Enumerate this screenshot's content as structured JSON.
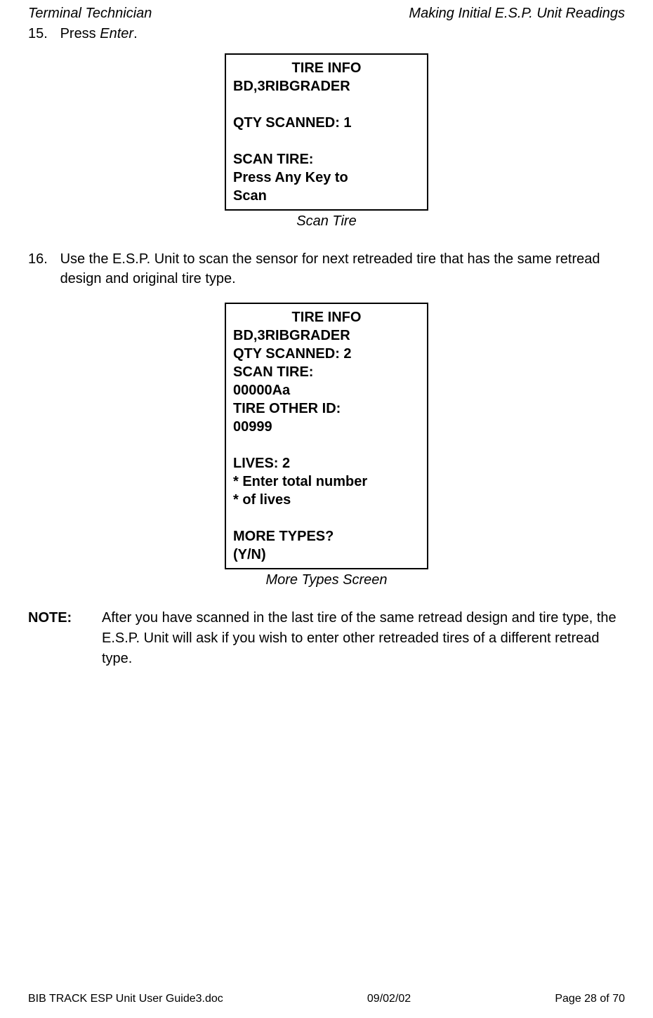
{
  "header": {
    "left": "Terminal Technician",
    "right": "Making Initial E.S.P. Unit Readings"
  },
  "step15": {
    "number": "15.",
    "text_prefix": "Press ",
    "text_italic": "Enter",
    "text_suffix": "."
  },
  "screen1": {
    "title": "TIRE INFO",
    "line1": "BD,3RIBGRADER",
    "line2": "QTY SCANNED: 1",
    "line3": "SCAN TIRE:",
    "line4": "Press Any Key to",
    "line5": "Scan",
    "caption": "Scan Tire"
  },
  "step16": {
    "number": "16.",
    "text": "Use the E.S.P. Unit to scan the sensor for next retreaded tire that has the same retread design and original tire type."
  },
  "screen2": {
    "title": "TIRE INFO",
    "line1": "BD,3RIBGRADER",
    "line2": "QTY SCANNED: 2",
    "line3": "SCAN TIRE:",
    "line4": "00000Aa",
    "line5": "TIRE OTHER ID:",
    "line6": "00999",
    "line7": "LIVES: 2",
    "line8": "* Enter total number",
    "line9": "* of lives",
    "line10": "MORE TYPES?",
    "line11": "(Y/N)",
    "caption": "More Types Screen"
  },
  "note": {
    "label": "NOTE:",
    "text": "After you have scanned in the last tire of the same retread design and tire type, the E.S.P. Unit will ask if you wish to enter other retreaded tires of a different retread type."
  },
  "footer": {
    "left": "BIB TRACK  ESP Unit User Guide3.doc",
    "center": "09/02/02",
    "right": "Page 28 of 70"
  }
}
